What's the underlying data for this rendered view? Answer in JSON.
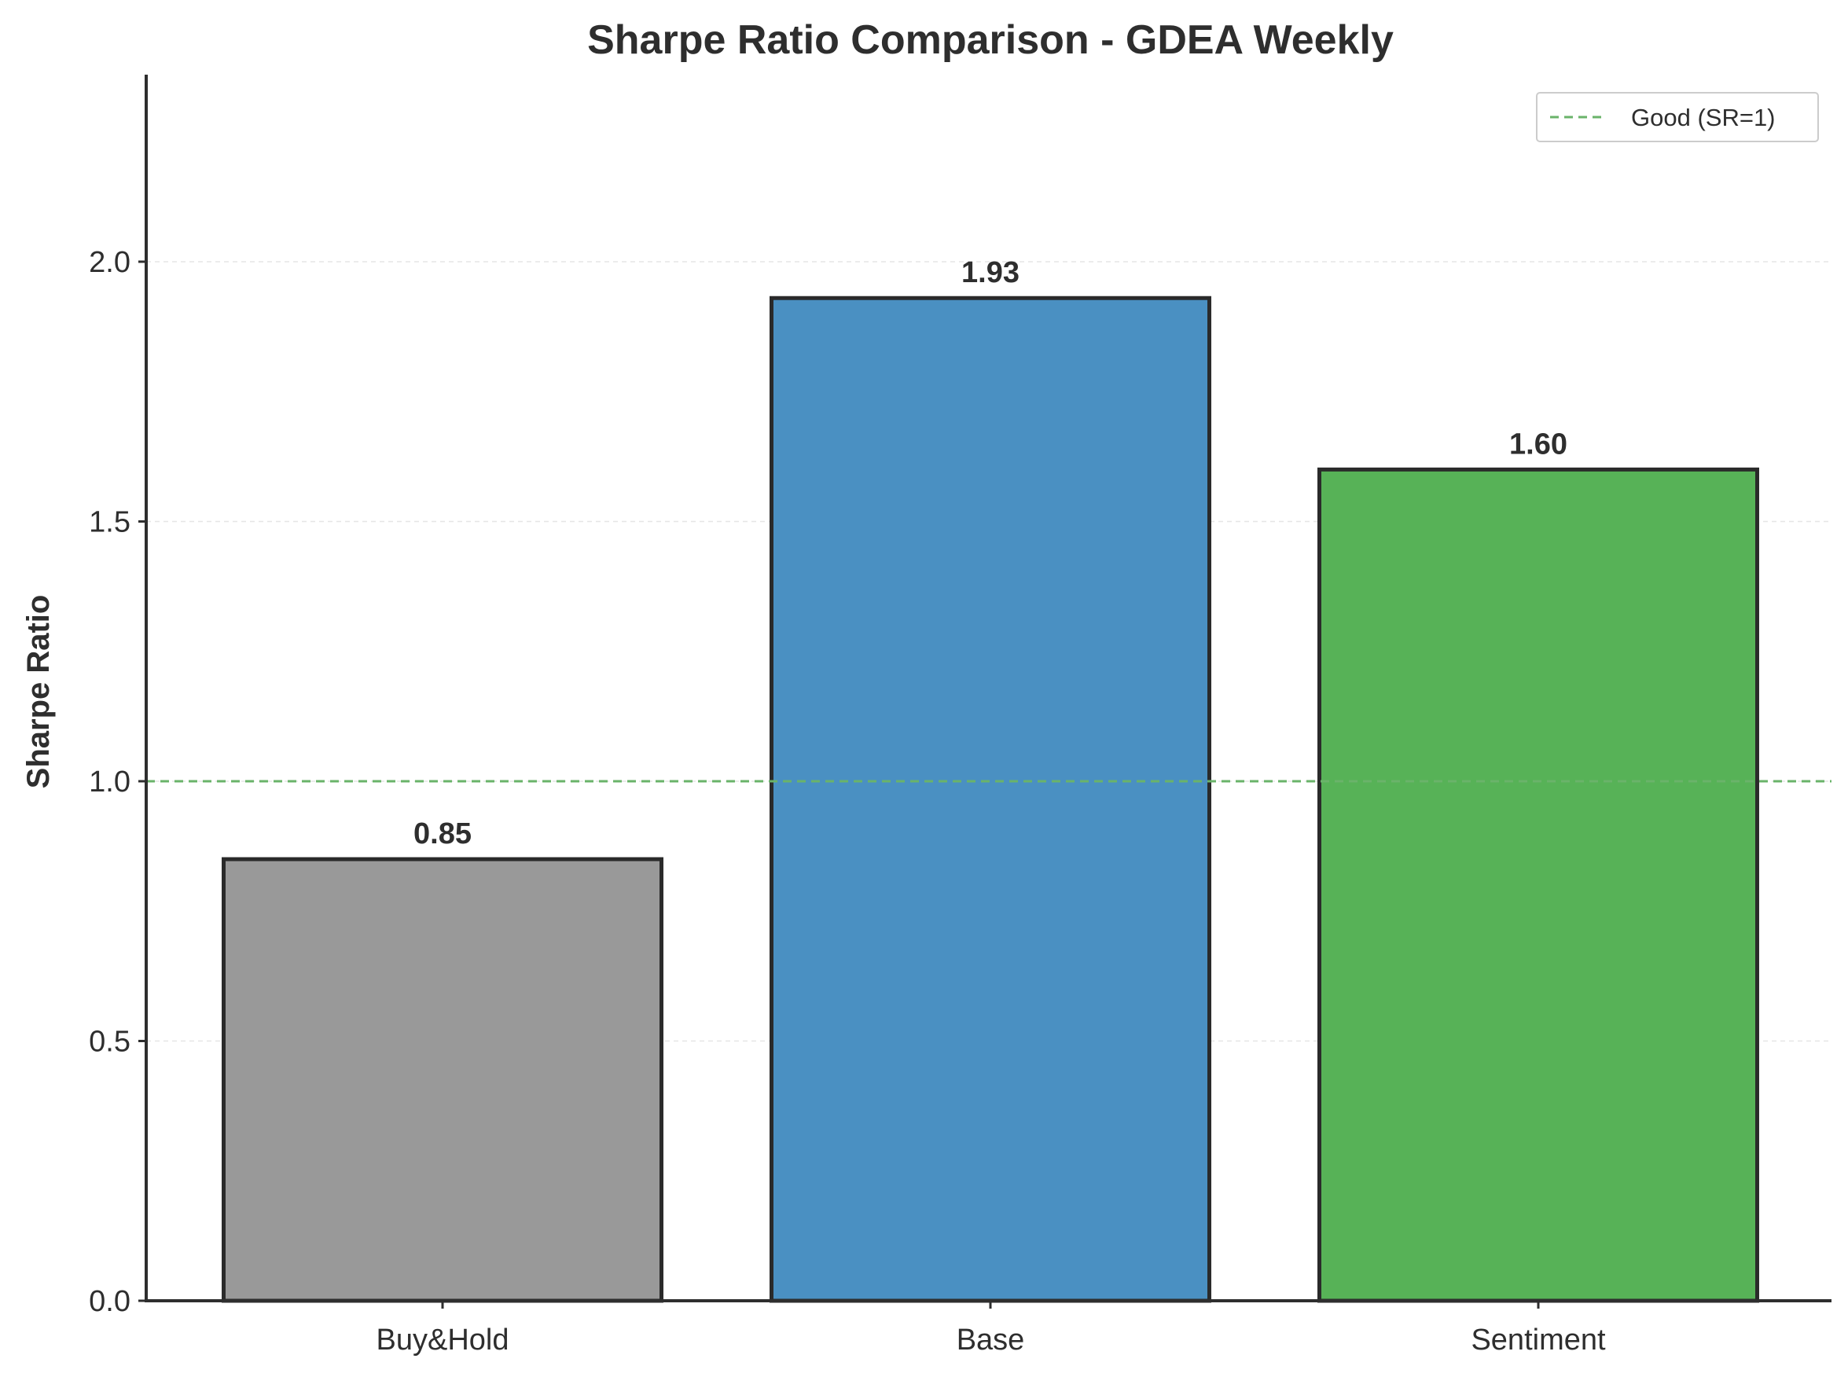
{
  "chart_data": {
    "type": "bar",
    "title": "Sharpe Ratio Comparison - GDEA Weekly",
    "xlabel": "",
    "ylabel": "Sharpe Ratio",
    "categories": [
      "Buy&Hold",
      "Base",
      "Sentiment"
    ],
    "values": [
      0.85,
      1.93,
      1.6
    ],
    "value_labels": [
      "0.85",
      "1.93",
      "1.60"
    ],
    "colors": [
      "#999999",
      "#4a90c2",
      "#57b257"
    ],
    "ylim": [
      0,
      2.36
    ],
    "yticks": [
      0.0,
      0.5,
      1.0,
      1.5,
      2.0
    ],
    "ytick_labels": [
      "0.0",
      "0.5",
      "1.0",
      "1.5",
      "2.0"
    ],
    "grid": "horizontal-dashed",
    "reference_line": {
      "value": 1.0,
      "label": "Good (SR=1)",
      "color": "#6ab36a",
      "style": "dashed"
    },
    "legend": {
      "position": "top-right",
      "entries": [
        "Good (SR=1)"
      ]
    }
  }
}
